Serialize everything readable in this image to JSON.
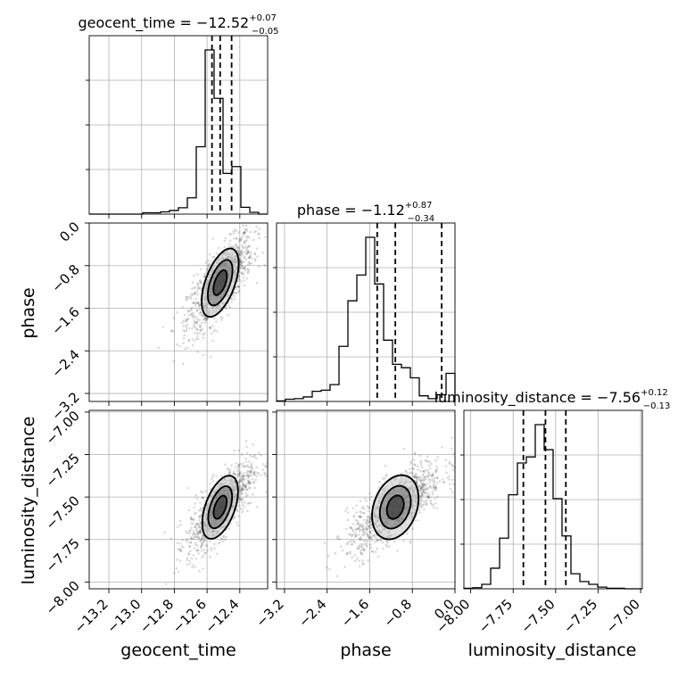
{
  "chart_data": {
    "type": "corner",
    "parameters": [
      "geocent_time",
      "phase",
      "luminosity_distance"
    ],
    "axis_labels": {
      "x": [
        "geocent_time",
        "phase",
        "luminosity_distance"
      ],
      "y": [
        "phase",
        "luminosity_distance"
      ]
    },
    "titles": [
      {
        "name": "geocent_time",
        "median": "−12.52",
        "plus": "+0.07",
        "minus": "−0.05"
      },
      {
        "name": "phase",
        "median": "−1.12",
        "plus": "+0.87",
        "minus": "−0.34"
      },
      {
        "name": "luminosity_distance",
        "median": "−7.56",
        "plus": "+0.12",
        "minus": "−0.13"
      }
    ],
    "ranges": {
      "geocent_time": [
        -13.32,
        -12.23
      ],
      "phase": [
        -3.35,
        0.0
      ],
      "luminosity_distance": [
        -8.04,
        -6.99
      ]
    },
    "ticks": {
      "geocent_time": [
        -13.2,
        -13.0,
        -12.8,
        -12.6,
        -12.4
      ],
      "phase": [
        -3.2,
        -2.4,
        -1.6,
        -0.8,
        0.0
      ],
      "luminosity_distance": [
        -8.0,
        -7.75,
        -7.5,
        -7.25,
        -7.0
      ]
    },
    "tick_labels": {
      "geocent_time": [
        "−13.2",
        "−13.0",
        "−12.8",
        "−12.6",
        "−12.4"
      ],
      "phase": [
        "−3.2",
        "−2.4",
        "−1.6",
        "−0.8",
        "0.0"
      ],
      "luminosity_distance": [
        "−8.00",
        "−7.75",
        "−7.50",
        "−7.25",
        "−7.00"
      ]
    },
    "quantiles": {
      "geocent_time": [
        -12.57,
        -12.52,
        -12.45
      ],
      "phase": [
        -1.46,
        -1.12,
        -0.25
      ],
      "luminosity_distance": [
        -7.69,
        -7.56,
        -7.44
      ]
    },
    "histograms": {
      "geocent_time": {
        "bins": 20,
        "counts": [
          0,
          0,
          0,
          0,
          0,
          0,
          0.3,
          0.3,
          0.5,
          0.8,
          1.4,
          3.6,
          14.9,
          36.3,
          25.6,
          9.0,
          10.5,
          1.5,
          0.4,
          0
        ]
      },
      "phase": {
        "bins": 20,
        "counts": [
          0.1,
          0.4,
          0.5,
          0.8,
          1.8,
          2.0,
          3.0,
          9.8,
          17.9,
          22.5,
          29.2,
          20.9,
          10.9,
          6.6,
          6.0,
          4.2,
          1.0,
          0.5,
          1.2,
          5.0
        ]
      },
      "luminosity_distance": {
        "bins": 20,
        "counts": [
          0.1,
          0.2,
          0.8,
          3.7,
          9.1,
          16.9,
          22.6,
          23.7,
          29.5,
          25.0,
          16.2,
          9.5,
          2.7,
          1.3,
          0.8,
          0.3,
          0.1,
          0.1,
          0,
          0
        ]
      }
    },
    "samples": {
      "geocent_time": {
        "center": -12.52,
        "sd": 0.1
      },
      "phase": {
        "center": -1.12,
        "sd": 0.45
      },
      "luminosity_distance": {
        "center": -7.56,
        "sd": 0.13
      }
    },
    "contour_levels": [
      "inner",
      "middle",
      "outer"
    ],
    "grid": true,
    "dot_color": "#000000",
    "line_color": "#000000",
    "grid_color": "#b0b0b0"
  }
}
